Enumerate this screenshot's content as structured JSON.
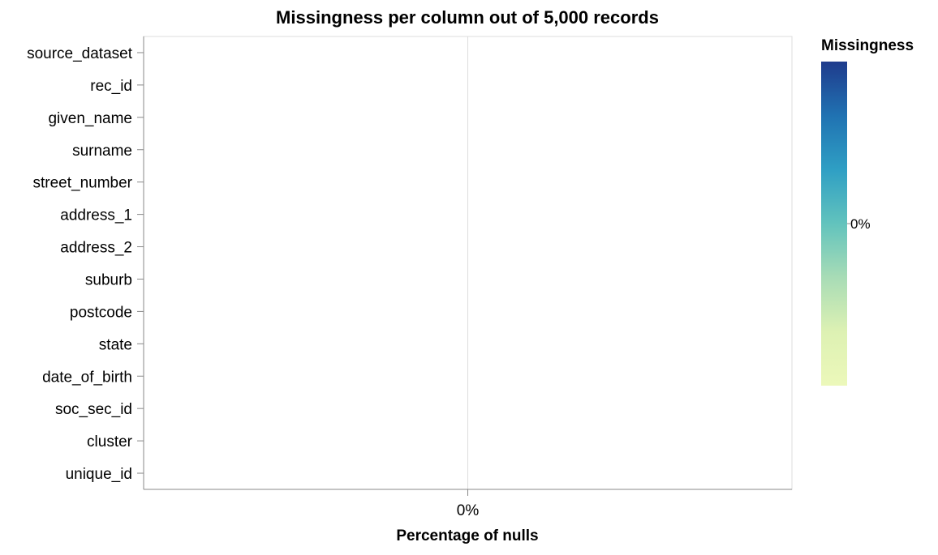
{
  "chart_data": {
    "type": "bar",
    "orientation": "horizontal",
    "title": "Missingness per column out of 5,000 records",
    "xlabel": "Percentage of nulls",
    "ylabel": "",
    "categories": [
      "source_dataset",
      "rec_id",
      "given_name",
      "surname",
      "street_number",
      "address_1",
      "address_2",
      "suburb",
      "postcode",
      "state",
      "date_of_birth",
      "soc_sec_id",
      "cluster",
      "unique_id"
    ],
    "values": [
      0,
      0,
      0,
      0,
      0,
      0,
      0,
      0,
      0,
      0,
      0,
      0,
      0,
      0
    ],
    "x_ticks": [
      "0%"
    ],
    "grid": true,
    "legend": {
      "title": "Missingness",
      "placement": "right",
      "scheme": "yellow-green-blue",
      "colors": [
        "#1f3b8c",
        "#2072b2",
        "#2f9fc4",
        "#62c3bd",
        "#a8dcb6",
        "#ddf1b3",
        "#ecf8ba"
      ],
      "labels": [
        "0%"
      ]
    }
  }
}
